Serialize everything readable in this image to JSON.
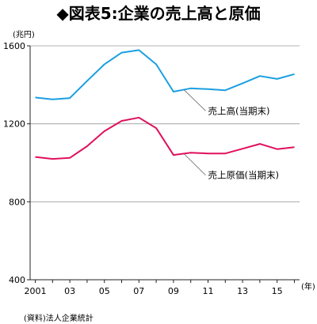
{
  "chart_data": {
    "type": "line",
    "title": "◆図表5:企業の売上高と原価",
    "ylabel": "(兆円)",
    "xlabel": "(年)",
    "source": "(資料)法人企業統計",
    "ylim": [
      400,
      1600
    ],
    "yticks": [
      400,
      800,
      1200,
      1600
    ],
    "xlim": [
      2000.7,
      2016.3
    ],
    "xticks": [
      {
        "x": 2001,
        "label": "2001"
      },
      {
        "x": 2003,
        "label": "03"
      },
      {
        "x": 2005,
        "label": "05"
      },
      {
        "x": 2007,
        "label": "07"
      },
      {
        "x": 2009,
        "label": "09"
      },
      {
        "x": 2011,
        "label": "11"
      },
      {
        "x": 2013,
        "label": "13"
      },
      {
        "x": 2015,
        "label": "15"
      }
    ],
    "x": [
      2001,
      2002,
      2003,
      2004,
      2005,
      2006,
      2007,
      2008,
      2009,
      2010,
      2011,
      2012,
      2013,
      2014,
      2015,
      2016
    ],
    "series": [
      {
        "name": "売上高(当期末)",
        "color": "#1a9fe0",
        "values": [
          1335,
          1325,
          1332,
          1420,
          1505,
          1565,
          1578,
          1505,
          1365,
          1382,
          1378,
          1372,
          1408,
          1445,
          1430,
          1455
        ],
        "label_anchor_x": 2009.6,
        "label_at": [
          2011,
          1250
        ]
      },
      {
        "name": "売上原価(当期末)",
        "color": "#e0105c",
        "values": [
          1030,
          1020,
          1025,
          1085,
          1162,
          1215,
          1232,
          1178,
          1040,
          1052,
          1048,
          1048,
          1072,
          1097,
          1070,
          1080
        ],
        "label_anchor_x": 2009.6,
        "label_at": [
          2011,
          920
        ]
      }
    ],
    "grid": true,
    "grid_lines_y": [
      800,
      1200,
      1600
    ]
  }
}
